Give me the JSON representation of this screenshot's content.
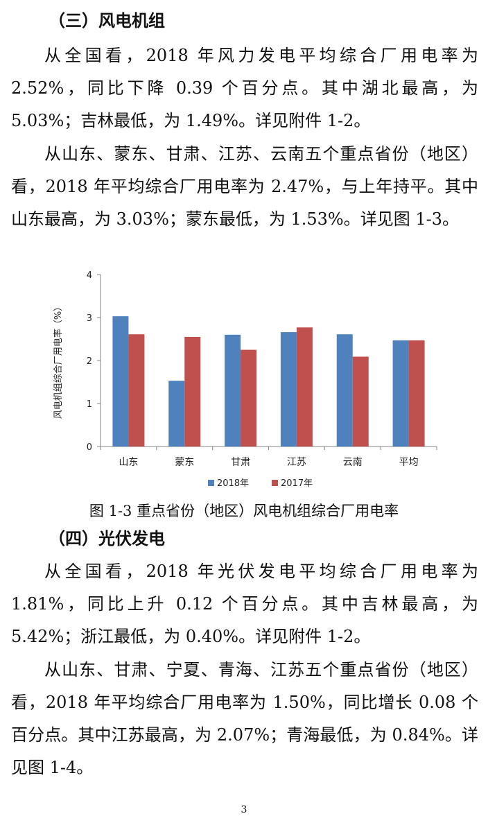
{
  "sections": {
    "wind": {
      "heading": "（三）风电机组",
      "para1": "从全国看，2018 年风力发电平均综合厂用电率为 2.52%，同比下降 0.39 个百分点。其中湖北最高，为 5.03%；吉林最低，为 1.49%。详见附件 1-2。",
      "para2": "从山东、蒙东、甘肃、江苏、云南五个重点省份（地区）看，2018 年平均综合厂用电率为 2.47%，与上年持平。其中山东最高，为 3.03%；蒙东最低，为 1.53%。详见图 1-3。"
    },
    "pv": {
      "heading": "（四）光伏发电",
      "para1": "从全国看，2018 年光伏发电平均综合厂用电率为 1.81%，同比上升 0.12 个百分点。其中吉林最高，为 5.42%；浙江最低，为 0.40%。详见附件 1-2。",
      "para2": "从山东、甘肃、宁夏、青海、江苏五个重点省份（地区）看，2018 年平均综合厂用电率为 1.50%，同比增长 0.08 个百分点。其中江苏最高，为 2.07%；青海最低，为 0.84%。详见图 1-4。"
    }
  },
  "figure": {
    "caption": "图 1-3 重点省份（地区）风电机组综合厂用电率"
  },
  "chart_data": {
    "type": "bar",
    "title": "",
    "categories": [
      "山东",
      "蒙东",
      "甘肃",
      "江苏",
      "云南",
      "平均"
    ],
    "series": [
      {
        "name": "2018年",
        "color": "#4f81bd",
        "values": [
          3.03,
          1.53,
          2.6,
          2.66,
          2.61,
          2.47
        ]
      },
      {
        "name": "2017年",
        "color": "#c0504d",
        "values": [
          2.61,
          2.55,
          2.25,
          2.77,
          2.09,
          2.47
        ]
      }
    ],
    "ylabel": "风电机组综合厂用电率（%）",
    "xlabel": "",
    "ylim": [
      0,
      4
    ],
    "yticks": [
      "0",
      "1",
      "2",
      "3",
      "4"
    ],
    "grid": false,
    "legend_position": "bottom"
  },
  "page_number": "3"
}
